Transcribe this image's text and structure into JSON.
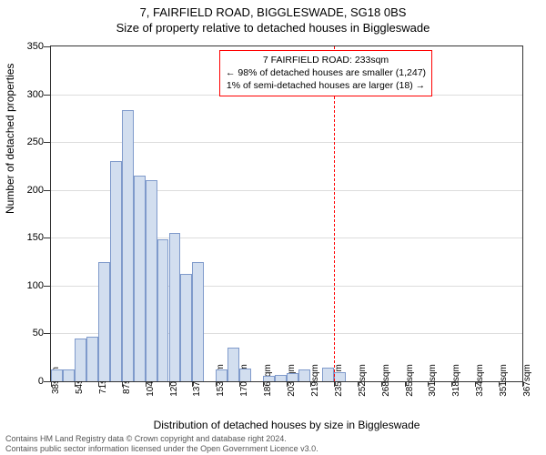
{
  "title_line1": "7, FAIRFIELD ROAD, BIGGLESWADE, SG18 0BS",
  "title_line2": "Size of property relative to detached houses in Biggleswade",
  "ylabel": "Number of detached properties",
  "xlabel": "Distribution of detached houses by size in Biggleswade",
  "chart": {
    "type": "histogram",
    "background_color": "#ffffff",
    "grid_color": "#dddddd",
    "axis_color": "#333333",
    "bar_fill": "#d2deef",
    "bar_stroke": "#7f9acb",
    "ylim": [
      0,
      350
    ],
    "ytick_step": 50,
    "x_tick_labels": [
      "38sqm",
      "54sqm",
      "71sqm",
      "87sqm",
      "104sqm",
      "120sqm",
      "137sqm",
      "153sqm",
      "170sqm",
      "186sqm",
      "203sqm",
      "219sqm",
      "235sqm",
      "252sqm",
      "268sqm",
      "285sqm",
      "301sqm",
      "318sqm",
      "334sqm",
      "351sqm",
      "367sqm"
    ],
    "x_tick_every": 2,
    "bar_values": [
      12,
      12,
      45,
      47,
      125,
      230,
      283,
      215,
      210,
      148,
      155,
      112,
      125,
      0,
      12,
      35,
      13,
      0,
      6,
      7,
      9,
      12,
      0,
      14,
      10,
      0,
      0,
      0,
      0,
      0,
      0,
      0,
      0,
      0,
      0,
      0,
      0,
      0,
      0,
      0
    ],
    "marker_x_index": 24,
    "callout": {
      "line1": "7 FAIRFIELD ROAD: 233sqm",
      "line2": "← 98% of detached houses are smaller (1,247)",
      "line3": "1% of semi-detached houses are larger (18) →",
      "border_color": "#ff0000"
    }
  },
  "footer_line1": "Contains HM Land Registry data © Crown copyright and database right 2024.",
  "footer_line2": "Contains public sector information licensed under the Open Government Licence v3.0."
}
